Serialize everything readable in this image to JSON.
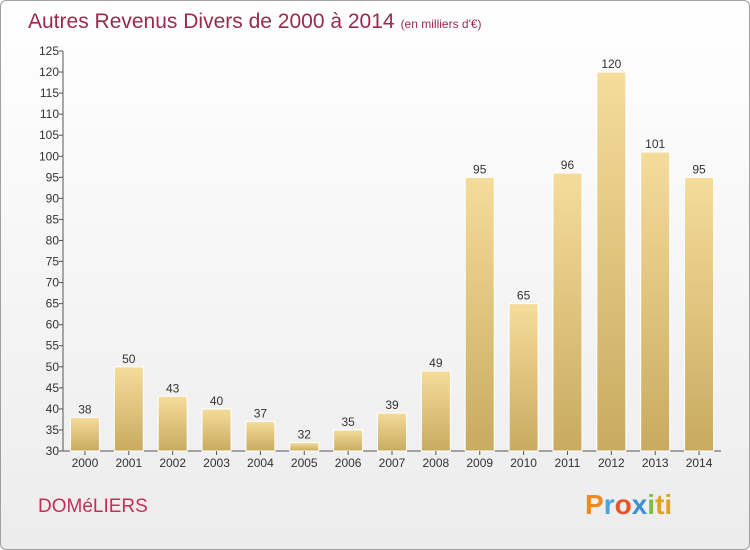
{
  "title": "Autres Revenus Divers de 2000 à 2014",
  "subtitle": "(en milliers d'€)",
  "commune": "DOMéLIERS",
  "logo_letters": [
    "P",
    "r",
    "o",
    "x",
    "i",
    "ti"
  ],
  "colors": {
    "bar_top": "#f5dc9a",
    "bar_bottom": "#c8ab60",
    "title": "#9a2a4a",
    "commune": "#c0305a"
  },
  "chart_data": {
    "type": "bar",
    "categories": [
      "2000",
      "2001",
      "2002",
      "2003",
      "2004",
      "2005",
      "2006",
      "2007",
      "2008",
      "2009",
      "2010",
      "2011",
      "2012",
      "2013",
      "2014"
    ],
    "values": [
      38,
      50,
      43,
      40,
      37,
      32,
      35,
      39,
      49,
      95,
      65,
      96,
      120,
      101,
      95
    ],
    "ylim": [
      30,
      125
    ],
    "yticks": [
      30,
      35,
      40,
      45,
      50,
      55,
      60,
      65,
      70,
      75,
      80,
      85,
      90,
      95,
      100,
      105,
      110,
      115,
      120,
      125
    ],
    "grid": false
  }
}
